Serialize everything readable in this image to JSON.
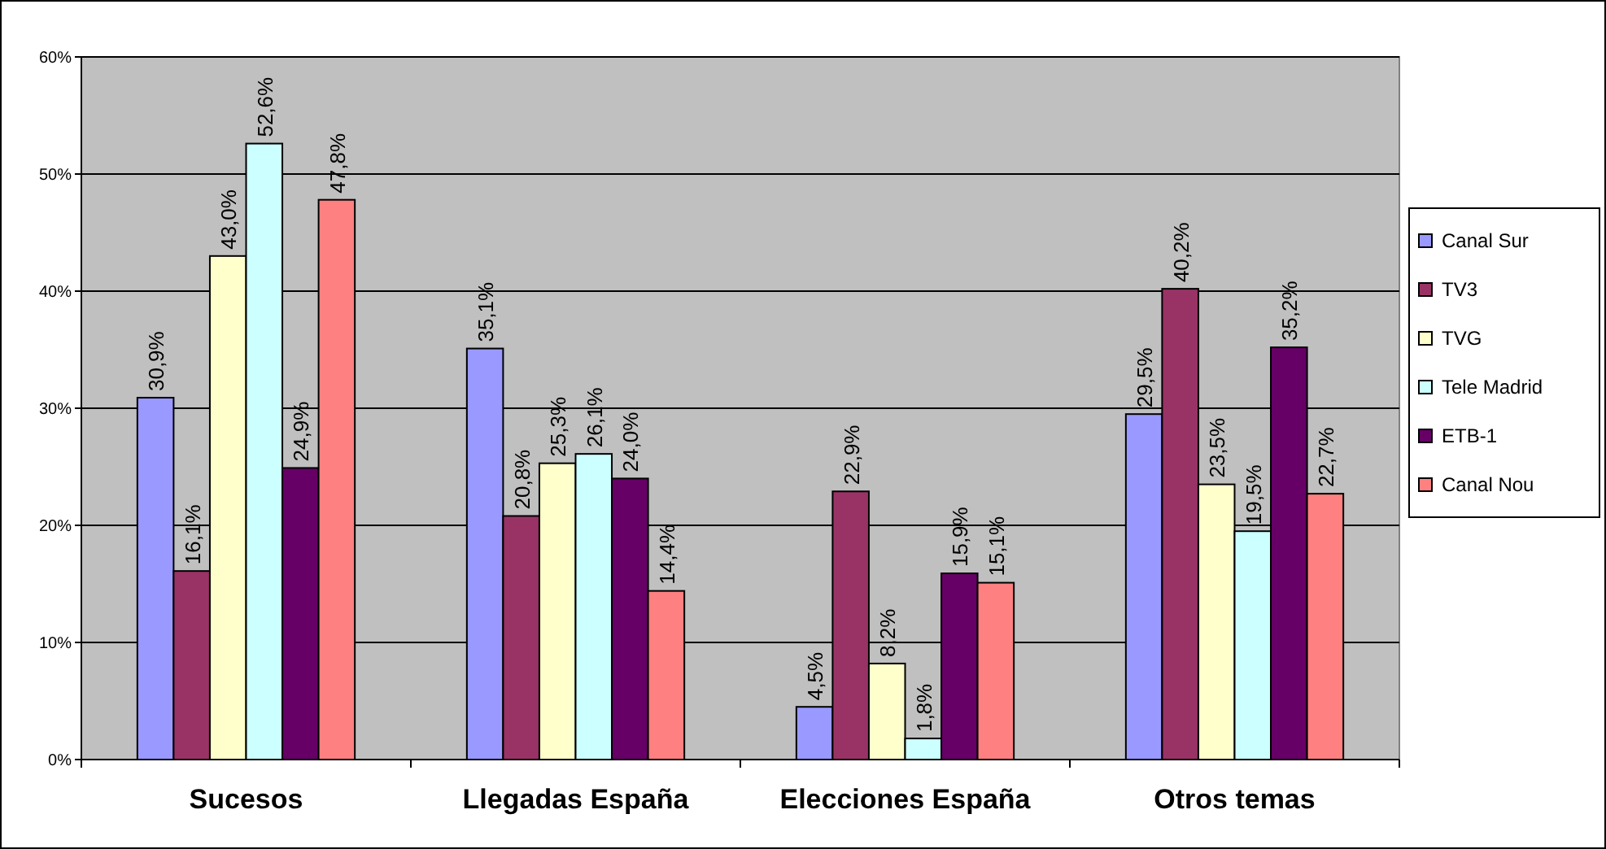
{
  "chart_data": {
    "type": "bar",
    "categories": [
      "Sucesos",
      "Llegadas España",
      "Elecciones España",
      "Otros temas"
    ],
    "series": [
      {
        "name": "Canal Sur",
        "color": "#9999ff",
        "values": [
          30.9,
          35.1,
          4.5,
          29.5
        ],
        "value_labels": [
          "30,9%",
          "35,1%",
          "4,5%",
          "29,5%"
        ]
      },
      {
        "name": "TV3",
        "color": "#993366",
        "values": [
          16.1,
          20.8,
          22.9,
          40.2
        ],
        "value_labels": [
          "16,1%",
          "20,8%",
          "22,9%",
          "40,2%"
        ]
      },
      {
        "name": "TVG",
        "color": "#ffffcc",
        "values": [
          43.0,
          25.3,
          8.2,
          23.5
        ],
        "value_labels": [
          "43,0%",
          "25,3%",
          "8,2%",
          "23,5%"
        ]
      },
      {
        "name": "Tele Madrid",
        "color": "#ccffff",
        "values": [
          52.6,
          26.1,
          1.8,
          19.5
        ],
        "value_labels": [
          "52,6%",
          "26,1%",
          "1,8%",
          "19,5%"
        ]
      },
      {
        "name": "ETB-1",
        "color": "#660066",
        "values": [
          24.9,
          24.0,
          15.9,
          35.2
        ],
        "value_labels": [
          "24,9%",
          "24,0%",
          "15,9%",
          "35,2%"
        ]
      },
      {
        "name": "Canal Nou",
        "color": "#ff8080",
        "values": [
          47.8,
          14.4,
          15.1,
          22.7
        ],
        "value_labels": [
          "47,8%",
          "14,4%",
          "15,1%",
          "22,7%"
        ]
      }
    ],
    "ylim": [
      0,
      60
    ],
    "yticks": [
      {
        "value": 0,
        "label": "0%"
      },
      {
        "value": 10,
        "label": "10%"
      },
      {
        "value": 20,
        "label": "20%"
      },
      {
        "value": 30,
        "label": "30%"
      },
      {
        "value": 40,
        "label": "40%"
      },
      {
        "value": 50,
        "label": "50%"
      },
      {
        "value": 60,
        "label": "60%"
      }
    ],
    "grid": "y",
    "legend": "right"
  }
}
